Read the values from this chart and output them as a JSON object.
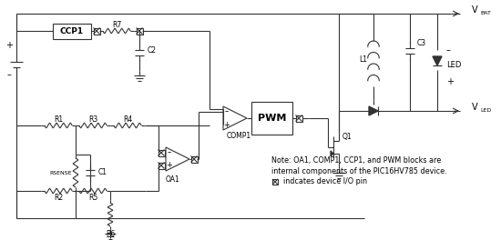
{
  "bg_color": "#ffffff",
  "line_color": "#333333",
  "text_color": "#000000",
  "fig_width": 5.5,
  "fig_height": 2.64,
  "dpi": 100,
  "note_line1": "Note: OA1, COMP1, CCP1, and PWM blocks are",
  "note_line2": "internal components of the PIC16HV785 device.",
  "note_line3": "   indcates device I/O pin"
}
